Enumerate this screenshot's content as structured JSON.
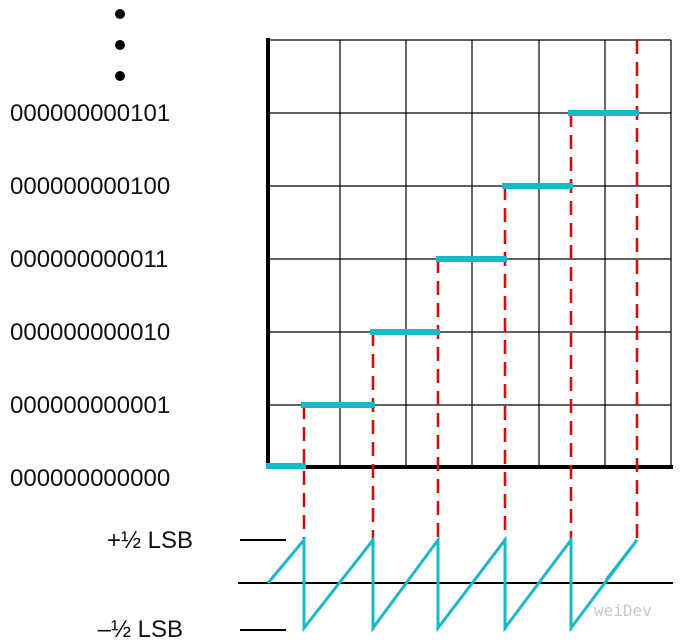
{
  "codes": [
    "000000000101",
    "000000000100",
    "000000000011",
    "000000000010",
    "000000000001",
    "000000000000"
  ],
  "error_labels": {
    "plus": "+½ LSB",
    "minus": "–½ LSB"
  },
  "watermark": "weiDev",
  "colors": {
    "grid": "#000000",
    "steps": "#1ab8c8",
    "transitions": "#cc1111",
    "error_wave": "#1ab8c8",
    "text": "#111111"
  }
}
